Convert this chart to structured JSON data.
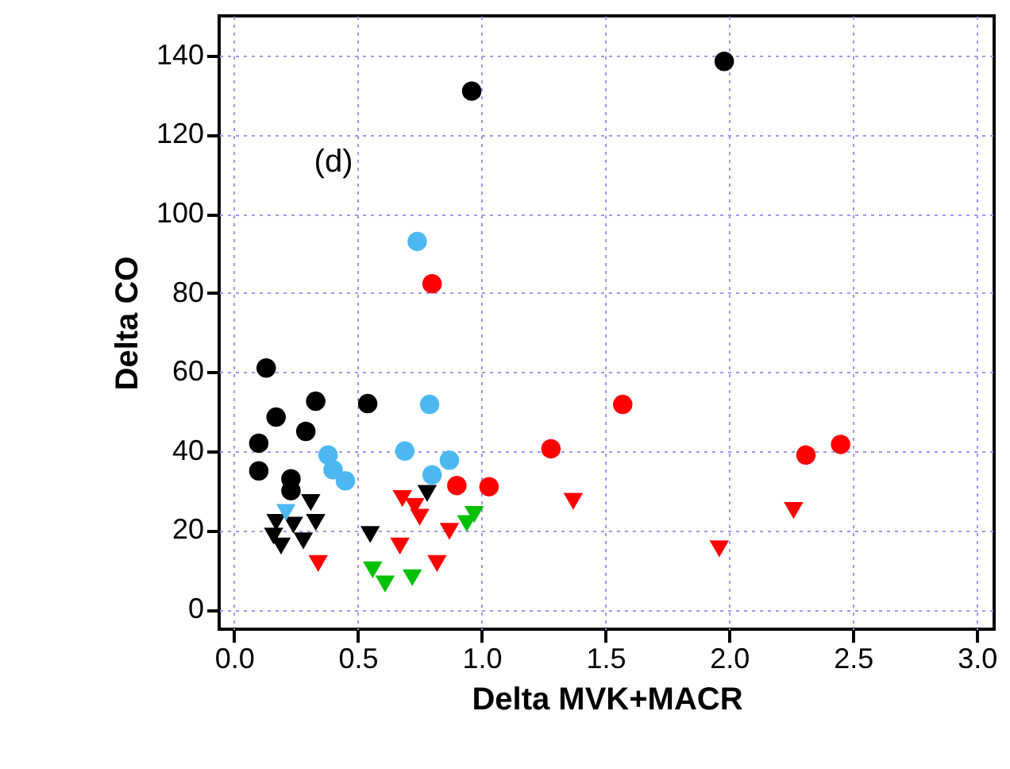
{
  "chart_data": {
    "type": "scatter",
    "xlabel": "Delta MVK+MACR",
    "ylabel": "Delta CO",
    "annotations": [
      "(d)"
    ],
    "xlim": [
      -0.06,
      3.07
    ],
    "ylim": [
      -5,
      150
    ],
    "xticks": [
      {
        "value": 0,
        "label": "0.0"
      },
      {
        "value": 0.5,
        "label": "0.5"
      },
      {
        "value": 1,
        "label": "1.0"
      },
      {
        "value": 1.5,
        "label": "1.5"
      },
      {
        "value": 2,
        "label": "2.0"
      },
      {
        "value": 2.5,
        "label": "2.5"
      },
      {
        "value": 3,
        "label": "3.0"
      }
    ],
    "yticks": [
      0,
      20,
      40,
      60,
      80,
      100,
      120,
      140
    ],
    "grid": true,
    "series": [
      {
        "color": "#000000",
        "marker": "circle",
        "x": [
          0.96,
          1.98,
          0.13,
          0.33,
          0.54,
          0.17,
          0.29,
          0.1,
          0.1,
          0.23,
          0.23
        ],
        "values": [
          131,
          138.5,
          61,
          52.6,
          52,
          48.6,
          45,
          42,
          35,
          33,
          30
        ]
      },
      {
        "color": "#4db8f0",
        "marker": "circle",
        "x": [
          0.74,
          0.79,
          0.38,
          0.69,
          0.87,
          0.4,
          0.45,
          0.8
        ],
        "values": [
          93,
          51.8,
          39,
          40,
          37.7,
          35.3,
          32.5,
          34
        ]
      },
      {
        "color": "#ff0000",
        "marker": "circle",
        "x": [
          0.8,
          0.9,
          1.03,
          1.57,
          1.28,
          2.31,
          2.45
        ],
        "values": [
          82.3,
          31.3,
          31,
          51.8,
          40.6,
          39,
          41.7
        ]
      },
      {
        "color": "#000000",
        "marker": "triangle",
        "x": [
          0.78,
          0.55,
          0.31,
          0.33,
          0.17,
          0.19,
          0.28,
          0.24,
          0.16
        ],
        "values": [
          29.3,
          18.9,
          27,
          22,
          22,
          16,
          17.3,
          21.3,
          18.5
        ]
      },
      {
        "color": "#ff0000",
        "marker": "triangle",
        "x": [
          1.37,
          1.96,
          2.26,
          0.34,
          0.68,
          0.73,
          0.75,
          0.87,
          0.67,
          0.82
        ],
        "values": [
          27.3,
          15.3,
          25,
          11.6,
          28,
          26,
          23.3,
          19.7,
          16,
          11.6
        ]
      },
      {
        "color": "#00c000",
        "marker": "triangle",
        "x": [
          0.56,
          0.61,
          0.72,
          0.94,
          0.97
        ],
        "values": [
          10,
          6.4,
          8,
          21.7,
          24
        ]
      },
      {
        "color": "#4db8f0",
        "marker": "triangle",
        "x": [
          0.21
        ],
        "values": [
          24.5
        ]
      }
    ]
  }
}
